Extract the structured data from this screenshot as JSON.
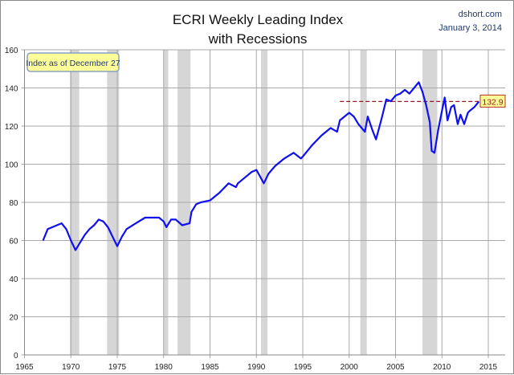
{
  "chart_data": {
    "type": "line",
    "title": "ECRI Weekly Leading Index",
    "subtitle": "with Recessions",
    "source": "dshort.com",
    "date": "January 3, 2014",
    "annotation": "Index as of December 27",
    "last_value_label": "132.9",
    "reference_line": {
      "value": 132.9,
      "from": 1999,
      "to": 2014,
      "color": "#a0141e",
      "style": "dashed"
    },
    "xlim": [
      1965,
      2017
    ],
    "ylim": [
      0,
      160
    ],
    "x_ticks": [
      "1965",
      "1970",
      "1975",
      "1980",
      "1985",
      "1990",
      "1995",
      "2000",
      "2005",
      "2010",
      "2015"
    ],
    "y_ticks": [
      "0",
      "20",
      "40",
      "60",
      "80",
      "100",
      "120",
      "140",
      "160"
    ],
    "grid": true,
    "line_color": "#1010ee",
    "recession_color": "#d6d6d6",
    "recessions": [
      [
        1969.9,
        1970.9
      ],
      [
        1973.9,
        1975.2
      ],
      [
        1980.0,
        1980.5
      ],
      [
        1981.5,
        1982.9
      ],
      [
        1990.5,
        1991.2
      ],
      [
        2001.2,
        2001.9
      ],
      [
        2007.9,
        2009.5
      ]
    ],
    "series": [
      {
        "x": [
          1967,
          1967.5,
          1968,
          1968.5,
          1969,
          1969.5,
          1970,
          1970.5,
          1971,
          1971.5,
          1972,
          1972.5,
          1973,
          1973.5,
          1974,
          1974.5,
          1975,
          1975.5,
          1976,
          1977,
          1978,
          1979,
          1979.5,
          1980,
          1980.3,
          1980.8,
          1981.3,
          1982,
          1982.8,
          1983,
          1983.5,
          1984,
          1985,
          1986,
          1987,
          1987.8,
          1988,
          1989,
          1989.5,
          1990,
          1990.8,
          1991.3,
          1992,
          1993,
          1994,
          1994.8,
          1995,
          1996,
          1997,
          1998,
          1998.7,
          1999,
          2000,
          2000.5,
          2001,
          2001.7,
          2002,
          2002.5,
          2002.9,
          2003.5,
          2004,
          2004.5,
          2005,
          2005.5,
          2006,
          2006.5,
          2007,
          2007.5,
          2007.9,
          2008.3,
          2008.7,
          2008.9,
          2009.2,
          2009.6,
          2010,
          2010.3,
          2010.6,
          2011,
          2011.3,
          2011.7,
          2012,
          2012.4,
          2012.8,
          2013,
          2013.5,
          2013.99
        ],
        "y": [
          60,
          66,
          67,
          68,
          69,
          66,
          60,
          55,
          59,
          63,
          66,
          68,
          71,
          70,
          67,
          62,
          57,
          62,
          66,
          69,
          72,
          72,
          72,
          70,
          67,
          71,
          71,
          68,
          69,
          75,
          79,
          80,
          81,
          85,
          90,
          88,
          90,
          94,
          96,
          97,
          90,
          95,
          99,
          103,
          106,
          103,
          104,
          110,
          115,
          119,
          117,
          123,
          127,
          125,
          121,
          117,
          125,
          118,
          113,
          124,
          134,
          133,
          136,
          137,
          139,
          137,
          140,
          143,
          138,
          131,
          122,
          107,
          106,
          118,
          128,
          135,
          123,
          130,
          131,
          121,
          126,
          121,
          127,
          128,
          130,
          132.9
        ]
      }
    ]
  }
}
